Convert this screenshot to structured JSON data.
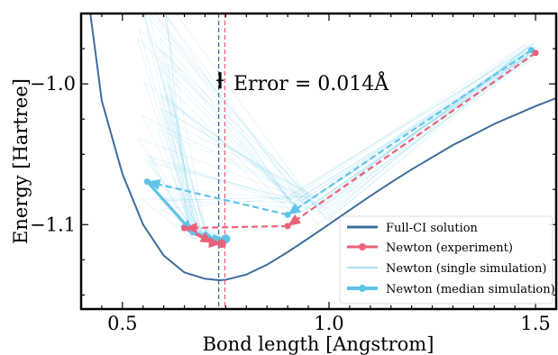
{
  "chart_data": {
    "type": "line",
    "xlabel": "Bond length [Angstrom]",
    "ylabel": "Energy [Hartree]",
    "xlim": [
      0.4,
      1.55
    ],
    "ylim": [
      -1.16,
      -0.95
    ],
    "x_ticks": [
      0.5,
      1.0,
      1.5
    ],
    "x_tick_labels": [
      "0.5",
      "1.0",
      "1.5"
    ],
    "y_ticks": [
      -1.0,
      -1.1
    ],
    "y_tick_labels": [
      "−1.0",
      "−1.1"
    ],
    "grid": false,
    "legend_position": "bottom-right",
    "annotation": {
      "text": "Error = 0.014Å",
      "x": 0.745,
      "y": -0.9975
    },
    "vertical_lines": [
      {
        "x": 0.733,
        "color": "#3d6d9e"
      },
      {
        "x": 0.748,
        "color": "#e8637a"
      }
    ],
    "colors": {
      "fci": "#3d6d9e",
      "experiment": "#e8637a",
      "simulation": "#5ec4e8"
    },
    "legend": [
      {
        "key": "fci",
        "label": "Full-CI solution"
      },
      {
        "key": "experiment",
        "label": "Newton (experiment)"
      },
      {
        "key": "single",
        "label": "Newton (single simulation)"
      },
      {
        "key": "median",
        "label": "Newton (median simulation)"
      }
    ],
    "series": [
      {
        "name": "Full-CI solution",
        "x": [
          0.4,
          0.45,
          0.5,
          0.55,
          0.6,
          0.65,
          0.7,
          0.735,
          0.75,
          0.8,
          0.85,
          0.9,
          0.95,
          1.0,
          1.05,
          1.1,
          1.15,
          1.2,
          1.3,
          1.4,
          1.5,
          1.55
        ],
        "y": [
          -0.9,
          -1.012,
          -1.064,
          -1.1,
          -1.122,
          -1.134,
          -1.1385,
          -1.1395,
          -1.1392,
          -1.1355,
          -1.1285,
          -1.1195,
          -1.1098,
          -1.0998,
          -1.0897,
          -1.0797,
          -1.0701,
          -1.0608,
          -1.0435,
          -1.0285,
          -1.0158,
          -1.0101
        ]
      },
      {
        "name": "Newton (experiment)",
        "x": [
          1.5,
          0.9,
          0.65,
          0.72,
          0.74
        ],
        "y": [
          -0.978,
          -1.101,
          -1.1025,
          -1.113,
          -1.1135
        ]
      },
      {
        "name": "Newton (median simulation)",
        "x": [
          1.49,
          0.9,
          0.56,
          0.67,
          0.725,
          0.75
        ],
        "y": [
          -0.976,
          -1.093,
          -1.0695,
          -1.1055,
          -1.1105,
          -1.1102
        ]
      }
    ]
  }
}
